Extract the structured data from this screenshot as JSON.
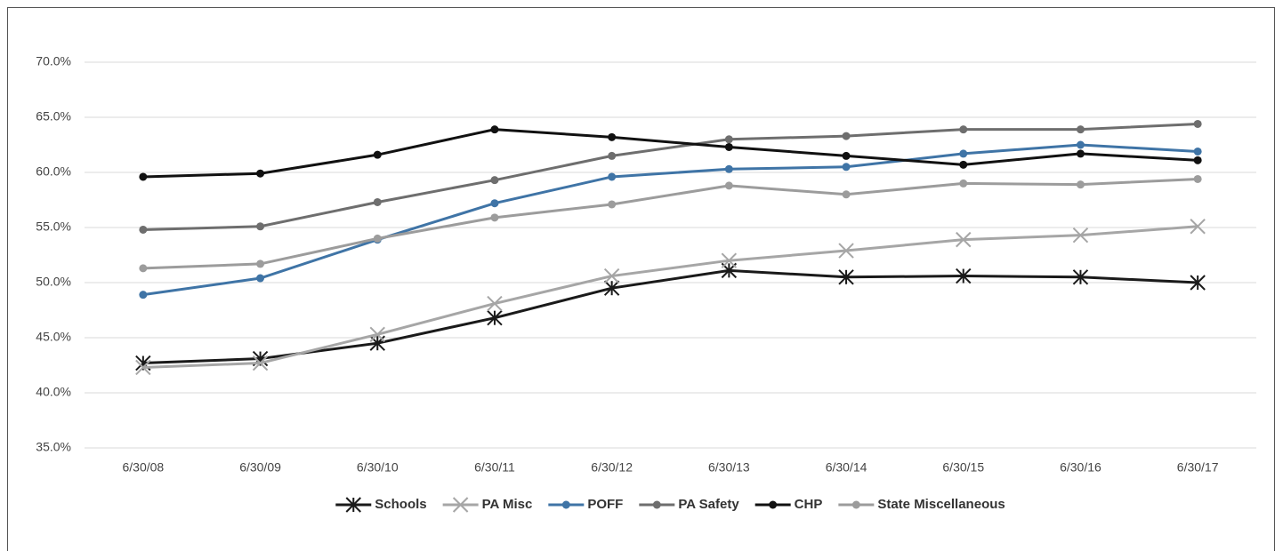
{
  "chart_data": {
    "type": "line",
    "categories": [
      "6/30/08",
      "6/30/09",
      "6/30/10",
      "6/30/11",
      "6/30/12",
      "6/30/13",
      "6/30/14",
      "6/30/15",
      "6/30/16",
      "6/30/17"
    ],
    "ylim": [
      35,
      70
    ],
    "yticks": [
      {
        "value": 35,
        "label": "35.0%"
      },
      {
        "value": 40,
        "label": "40.0%"
      },
      {
        "value": 45,
        "label": "45.0%"
      },
      {
        "value": 50,
        "label": "50.0%"
      },
      {
        "value": 55,
        "label": "55.0%"
      },
      {
        "value": 60,
        "label": "60.0%"
      },
      {
        "value": 65,
        "label": "65.0%"
      },
      {
        "value": 70,
        "label": "70.0%"
      }
    ],
    "grid": true,
    "legend": "bottom",
    "series": [
      {
        "name": "Schools",
        "color": "#1a1a1a",
        "marker": "star",
        "values": [
          42.7,
          43.1,
          44.5,
          46.8,
          49.5,
          51.1,
          50.5,
          50.6,
          50.5,
          50.0
        ]
      },
      {
        "name": "PA Misc",
        "color": "#a6a6a6",
        "marker": "x",
        "values": [
          42.3,
          42.7,
          45.3,
          48.1,
          50.6,
          52.0,
          52.9,
          53.9,
          54.3,
          55.1
        ]
      },
      {
        "name": "POFF",
        "color": "#3f74a6",
        "marker": "circle",
        "values": [
          48.9,
          50.4,
          53.9,
          57.2,
          59.6,
          60.3,
          60.5,
          61.7,
          62.5,
          61.9
        ]
      },
      {
        "name": "PA Safety",
        "color": "#6e6e6e",
        "marker": "circle",
        "values": [
          54.8,
          55.1,
          57.3,
          59.3,
          61.5,
          63.0,
          63.3,
          63.9,
          63.9,
          64.4
        ]
      },
      {
        "name": "CHP",
        "color": "#111111",
        "marker": "circle",
        "values": [
          59.6,
          59.9,
          61.6,
          63.9,
          63.2,
          62.3,
          61.5,
          60.7,
          61.7,
          61.1
        ]
      },
      {
        "name": "State Miscellaneous",
        "color": "#9c9c9c",
        "marker": "circle",
        "values": [
          51.3,
          51.7,
          54.0,
          55.9,
          57.1,
          58.8,
          58.0,
          59.0,
          58.9,
          59.4
        ]
      }
    ]
  }
}
